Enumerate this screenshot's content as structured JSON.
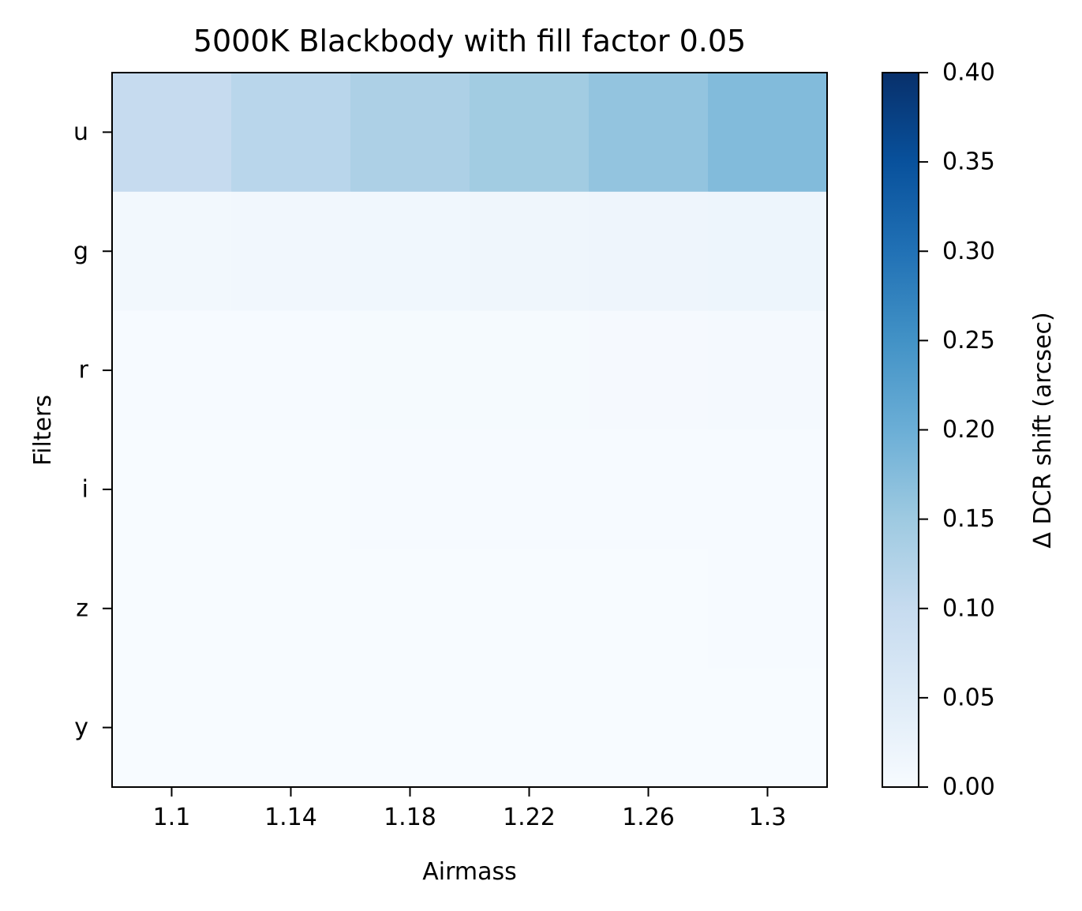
{
  "chart_data": {
    "type": "heatmap",
    "title": "5000K Blackbody with fill factor 0.05",
    "xlabel": "Airmass",
    "ylabel": "Filters",
    "x_tick_labels": [
      "1.1",
      "1.14",
      "1.18",
      "1.22",
      "1.26",
      "1.3"
    ],
    "y_tick_labels": [
      "u",
      "g",
      "r",
      "i",
      "z",
      "y"
    ],
    "colormap": "Blues",
    "colorbar": {
      "label": "Δ DCR shift (arcsec)",
      "min": 0.0,
      "max": 0.4,
      "tick_labels": [
        "0.00",
        "0.05",
        "0.10",
        "0.15",
        "0.20",
        "0.25",
        "0.30",
        "0.35",
        "0.40"
      ]
    },
    "values": [
      [
        0.1,
        0.116,
        0.131,
        0.145,
        0.161,
        0.177
      ],
      [
        0.01,
        0.012,
        0.014,
        0.016,
        0.018,
        0.02
      ],
      [
        0.003,
        0.003,
        0.004,
        0.004,
        0.005,
        0.006
      ],
      [
        0.001,
        0.001,
        0.002,
        0.002,
        0.002,
        0.003
      ],
      [
        0.001,
        0.001,
        0.001,
        0.001,
        0.001,
        0.002
      ],
      [
        0.0,
        0.0,
        0.001,
        0.001,
        0.001,
        0.001
      ]
    ]
  }
}
